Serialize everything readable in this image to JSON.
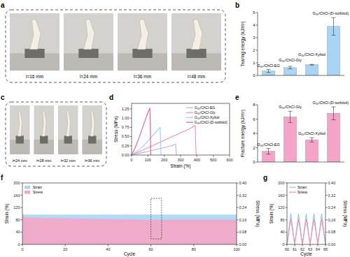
{
  "chart_data": [
    {
      "type": "image",
      "title": "a",
      "annotations": [
        "l=16 mm",
        "l=24 mm",
        "l=36 mm",
        "l=48 mm"
      ]
    },
    {
      "type": "bar",
      "title": "b",
      "y_label": "Tearing energy (kJ/m²)",
      "categories": [
        "G₃₀/ChCl-EG",
        "G₃₀/ChCl-Gly",
        "G₃₀/ChCl-Xylitol",
        "G₃₀/ChCl-(D-sorbitol)"
      ],
      "values": [
        0.35,
        0.62,
        0.85,
        3.9
      ],
      "errors": [
        0.12,
        0.1,
        0.03,
        0.7
      ],
      "color": "#a8d4f5",
      "ylim": [
        0,
        5
      ],
      "yticks": [
        0,
        1,
        2,
        3,
        4,
        5
      ],
      "tick_labels": "y"
    },
    {
      "type": "image",
      "title": "c",
      "annotations": [
        "l=24 mm",
        "l=28 mm",
        "l=32 mm",
        "l=36 mm"
      ]
    },
    {
      "type": "line",
      "title": "d",
      "x_label": "Strain (%)",
      "y_label": "Stress (MPa)",
      "xlim": [
        0,
        600
      ],
      "xticks": [
        0,
        100,
        200,
        300,
        400,
        500,
        600
      ],
      "ylim": [
        0,
        1.4
      ],
      "yticks": [
        {
          "value": 0,
          "label": "0.00"
        },
        {
          "value": 0.25,
          "label": "0.25"
        },
        {
          "value": 0.5,
          "label": "0.50"
        },
        {
          "value": 0.75,
          "label": "0.75"
        },
        {
          "value": 1,
          "label": "1.00"
        },
        {
          "value": 1.25,
          "label": "1.25"
        }
      ],
      "legend": "upper right",
      "series": [
        {
          "name": "G₃₀/ChCl-EG",
          "color": "#c8a8e0",
          "x": [
            0,
            50,
            100,
            150,
            200,
            250,
            270,
            272,
            275
          ],
          "values": [
            0,
            0.05,
            0.1,
            0.15,
            0.2,
            0.26,
            0.3,
            0.15,
            0
          ]
        },
        {
          "name": "G₃₀/ChCl-Gly",
          "color": "#f48fb1",
          "x": [
            0,
            50,
            100,
            150,
            200,
            250,
            300,
            350,
            390,
            392,
            395
          ],
          "values": [
            0,
            0.1,
            0.2,
            0.3,
            0.4,
            0.5,
            0.6,
            0.7,
            0.8,
            0.4,
            0
          ]
        },
        {
          "name": "G₃₀/ChCl-Xylitol",
          "color": "#9ad0f5",
          "x": [
            0,
            40,
            80,
            120,
            160,
            175,
            178,
            180
          ],
          "values": [
            0,
            0.12,
            0.28,
            0.48,
            0.68,
            0.75,
            0.3,
            0
          ]
        },
        {
          "name": "G₃₀/ChCl-(D-sorbitol)",
          "color": "#e85a9b",
          "x": [
            0,
            20,
            40,
            60,
            80,
            100,
            112,
            115,
            118
          ],
          "values": [
            0,
            0.18,
            0.4,
            0.65,
            0.9,
            1.15,
            1.27,
            0.6,
            0
          ]
        }
      ]
    },
    {
      "type": "bar",
      "title": "e",
      "y_label": "Fracture energy (kJ/m²)",
      "categories": [
        "G₃₀/ChCl-EG",
        "G₃₀/ChCl-Gly",
        "G₃₀/ChCl-Xylitol",
        "G₃₀/ChCl-(D-sorbitol)"
      ],
      "values": [
        1.5,
        6.3,
        3.1,
        6.8
      ],
      "errors": [
        0.4,
        0.8,
        0.3,
        0.9
      ],
      "color": "#f5a3c7",
      "ylim": [
        0,
        8
      ],
      "yticks": [
        0,
        2,
        4,
        6,
        8
      ],
      "tick_labels": "y"
    },
    {
      "type": "area",
      "title": "f",
      "x_label": "Cycle",
      "y_label": "Strain (%)",
      "y2_label": "Stress (MPa)",
      "xlim": [
        0,
        100
      ],
      "xticks": [
        0,
        20,
        40,
        60,
        80,
        100
      ],
      "ylim": [
        0,
        200
      ],
      "yticks": [
        0,
        40,
        80,
        120,
        160,
        200
      ],
      "y2lim": [
        0,
        0.4
      ],
      "y2ticks": [
        {
          "value": 0,
          "label": "0.00"
        },
        {
          "value": 0.08,
          "label": "0.08"
        },
        {
          "value": 0.16,
          "label": "0.16"
        },
        {
          "value": 0.24,
          "label": "0.24"
        },
        {
          "value": 0.32,
          "label": "0.32"
        },
        {
          "value": 0.4,
          "label": "0.40"
        }
      ],
      "legend": "upper left",
      "series": [
        {
          "name": "Strain",
          "color": "#a9d6f5",
          "x": [
            0,
            1,
            20,
            40,
            60,
            80,
            100
          ],
          "values": [
            100,
            97,
            97,
            97,
            97,
            97,
            97
          ]
        },
        {
          "name": "Stress",
          "color": "#f6a5c5",
          "axis": "y2",
          "x": [
            0,
            1,
            20,
            40,
            60,
            80,
            100
          ],
          "values": [
            0.19,
            0.175,
            0.17,
            0.165,
            0.16,
            0.16,
            0.16
          ]
        }
      ]
    },
    {
      "type": "line",
      "title": "g",
      "x_label": "Cycle",
      "y_label": "Strain (%)",
      "y2_label": "Stress (MPa)",
      "xlim": [
        60,
        65
      ],
      "xticks": [
        60,
        61,
        62,
        63,
        64,
        65
      ],
      "ylim": [
        0,
        200
      ],
      "yticks": [
        0,
        40,
        80,
        120,
        160,
        200
      ],
      "y2lim": [
        0,
        0.4
      ],
      "y2ticks": [
        {
          "value": 0,
          "label": "0.00"
        },
        {
          "value": 0.08,
          "label": "0.08"
        },
        {
          "value": 0.16,
          "label": "0.16"
        },
        {
          "value": 0.24,
          "label": "0.24"
        },
        {
          "value": 0.32,
          "label": "0.32"
        },
        {
          "value": 0.4,
          "label": "0.40"
        }
      ],
      "legend": "upper left",
      "series": [
        {
          "name": "Strain",
          "color": "#8cc8f0",
          "x": [
            60,
            60.5,
            61,
            61.5,
            62,
            62.5,
            63,
            63.5,
            64,
            64.5,
            65
          ],
          "values": [
            0,
            100,
            0,
            100,
            0,
            100,
            0,
            100,
            0,
            100,
            0
          ]
        },
        {
          "name": "Stress",
          "color": "#f48fb1",
          "axis": "y2",
          "x": [
            60,
            60.5,
            61,
            61.5,
            62,
            62.5,
            63,
            63.5,
            64,
            64.5,
            65
          ],
          "values": [
            0,
            0.165,
            0,
            0.165,
            0,
            0.165,
            0,
            0.165,
            0,
            0.165,
            0
          ]
        }
      ]
    }
  ]
}
